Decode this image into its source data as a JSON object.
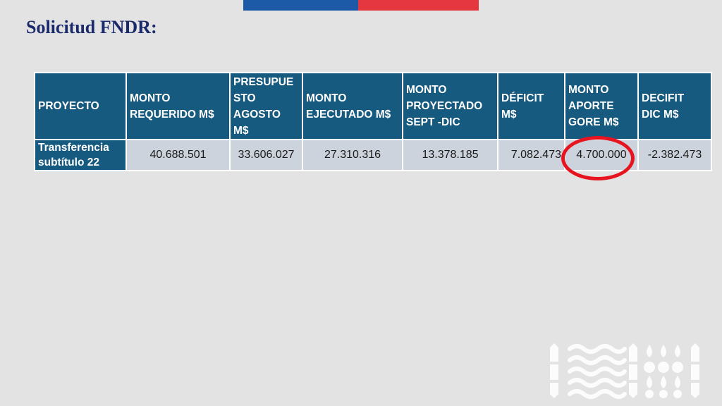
{
  "slide": {
    "title": "Solicitud FNDR:"
  },
  "table": {
    "headers": [
      "PROYECTO",
      "MONTO\nREQUERIDO M$",
      "PRESUPUE\nSTO\nAGOSTO\nM$",
      "MONTO\nEJECUTADO M$",
      "MONTO\n PROYECTADO\nSEPT -DIC",
      "DÉFICIT\n M$",
      "MONTO\nAPORTE\nGORE M$",
      "DECIFIT\nDIC M$"
    ],
    "rows": [
      {
        "label": "Transferencia subtítulo 22",
        "values": [
          "40.688.501",
          "33.606.027",
          "27.310.316",
          "13.378.185",
          "7.082.473",
          "4.700.000",
          "-2.382.473"
        ]
      }
    ]
  },
  "colors": {
    "header_bg": "#175a80",
    "cell_bg": "#ccd3dc",
    "title_color": "#1b2a6b",
    "highlight_ring": "#e6141e",
    "flag_blue": "#1c5aa8",
    "flag_red": "#e4373f"
  },
  "icons": [
    "government-logo-icon"
  ]
}
